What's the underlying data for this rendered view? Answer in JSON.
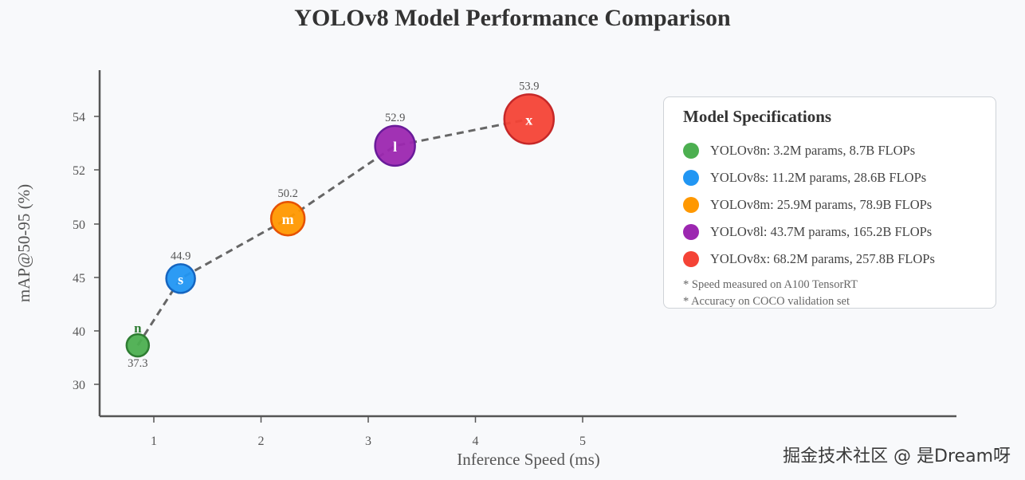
{
  "chart_data": {
    "type": "scatter",
    "title": "YOLOv8 Model Performance Comparison",
    "xlabel": "Inference Speed (ms)",
    "ylabel": "mAP@50-95 (%)",
    "y_tick_labels": [
      "30",
      "40",
      "45",
      "50",
      "52",
      "54"
    ],
    "x_tick_labels": [
      "1",
      "2",
      "3",
      "4",
      "5"
    ],
    "xlim": [
      0.5,
      8.5
    ],
    "grid": false,
    "points": [
      {
        "label": "n",
        "x": 0.85,
        "y": 37.3,
        "value_label": "37.3",
        "color": "#4caf50",
        "border": "#2e7d32"
      },
      {
        "label": "s",
        "x": 1.25,
        "y": 44.9,
        "value_label": "44.9",
        "color": "#2196f3",
        "border": "#1565c0"
      },
      {
        "label": "m",
        "x": 2.25,
        "y": 50.2,
        "value_label": "50.2",
        "color": "#ff9800",
        "border": "#e65100"
      },
      {
        "label": "l",
        "x": 3.25,
        "y": 52.9,
        "value_label": "52.9",
        "color": "#9c27b0",
        "border": "#6a1b9a"
      },
      {
        "label": "x",
        "x": 4.5,
        "y": 53.9,
        "value_label": "53.9",
        "color": "#f44336",
        "border": "#c62828"
      }
    ],
    "trend_line": {
      "style": "dashed",
      "color": "#666666"
    }
  },
  "legend": {
    "title": "Model Specifications",
    "placement": "top-right",
    "items": [
      {
        "text": "YOLOv8n: 3.2M params, 8.7B FLOPs",
        "color": "#4caf50"
      },
      {
        "text": "YOLOv8s: 11.2M params, 28.6B FLOPs",
        "color": "#2196f3"
      },
      {
        "text": "YOLOv8m: 25.9M params, 78.9B FLOPs",
        "color": "#ff9800"
      },
      {
        "text": "YOLOv8l: 43.7M params, 165.2B FLOPs",
        "color": "#9c27b0"
      },
      {
        "text": "YOLOv8x: 68.2M params, 257.8B FLOPs",
        "color": "#f44336"
      }
    ],
    "notes": [
      "* Speed measured on A100 TensorRT",
      "* Accuracy on COCO validation set"
    ]
  },
  "watermark": "掘金技术社区 @ 是Dream呀"
}
